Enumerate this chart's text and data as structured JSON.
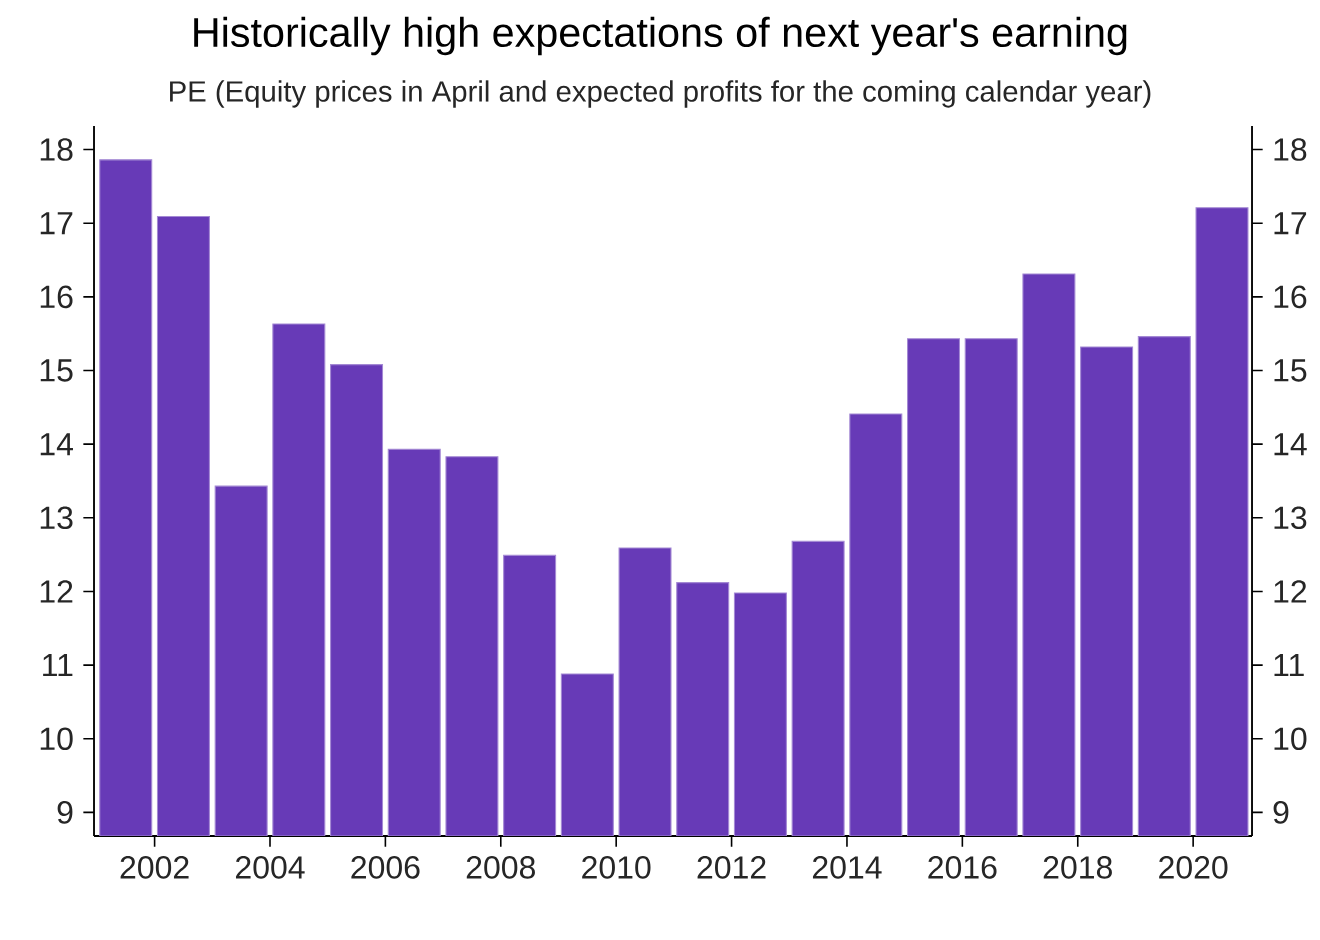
{
  "chart_data": {
    "type": "bar",
    "title": "Historically high expectations of next year's earning",
    "subtitle": "PE (Equity prices in April and expected profits for the coming calendar year)",
    "x": [
      2001.5,
      2002.5,
      2003.5,
      2004.5,
      2005.5,
      2006.5,
      2007.5,
      2008.5,
      2009.5,
      2010.5,
      2011.5,
      2012.5,
      2013.5,
      2014.5,
      2015.5,
      2016.5,
      2017.5,
      2018.5,
      2019.5,
      2020.5
    ],
    "values": [
      17.86,
      17.09,
      13.43,
      15.63,
      15.08,
      13.93,
      13.83,
      12.49,
      10.88,
      12.59,
      12.12,
      11.98,
      12.68,
      14.41,
      15.43,
      15.43,
      16.31,
      15.32,
      15.46,
      17.21
    ],
    "color": "#673ab7",
    "xlim": [
      2000.95,
      2021.02
    ],
    "xticks": [
      2002,
      2004,
      2006,
      2008,
      2010,
      2012,
      2014,
      2016,
      2018,
      2020
    ],
    "ylim": [
      8.68,
      18.32
    ],
    "yticks": [
      9,
      10,
      11,
      12,
      13,
      14,
      15,
      16,
      17,
      18
    ],
    "y2lim": [
      8.68,
      18.32
    ],
    "y2ticks": [
      9,
      10,
      11,
      12,
      13,
      14,
      15,
      16,
      17,
      18
    ]
  }
}
